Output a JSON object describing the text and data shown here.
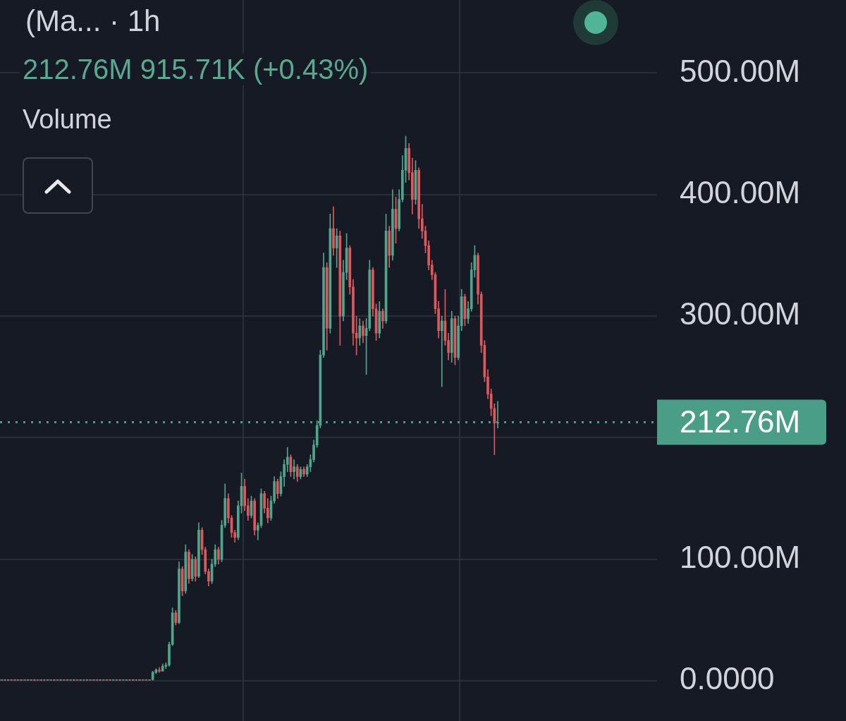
{
  "chart_data": {
    "type": "candlestick",
    "title": "(Ma... · 1h",
    "annotations": [
      "212.76M 915.71K (+0.43%)",
      "Volume"
    ],
    "categories": [
      null,
      null,
      null,
      null,
      null,
      null,
      null,
      null,
      null,
      null,
      null,
      null,
      null,
      null,
      null,
      null,
      null,
      null,
      null,
      null,
      null,
      null,
      null,
      null,
      null,
      null,
      null,
      null,
      null,
      null,
      null,
      null,
      null,
      null,
      null,
      null,
      null,
      null,
      null,
      null,
      null,
      null,
      null,
      null,
      null,
      null,
      null,
      null,
      null,
      null,
      null,
      null,
      null,
      null,
      null,
      null,
      null,
      null,
      null,
      null,
      null,
      null,
      null,
      null,
      null,
      null,
      null,
      null,
      null,
      null,
      null,
      null,
      null,
      null,
      null,
      null,
      null,
      null,
      null,
      null,
      null,
      null,
      null,
      null,
      null,
      null,
      null,
      null,
      null,
      null,
      null,
      null,
      null,
      null,
      null,
      null,
      null,
      null,
      null,
      null,
      null,
      null,
      null,
      null,
      null,
      null,
      null,
      null,
      null,
      null,
      null,
      null,
      null,
      null,
      null,
      null,
      null,
      null,
      null,
      null,
      null,
      null,
      null,
      null,
      null,
      null,
      null,
      null,
      null,
      null,
      null,
      null,
      null,
      null,
      null,
      null,
      null,
      null,
      null,
      null,
      null,
      null,
      null,
      null,
      null,
      null,
      null,
      null,
      null,
      null,
      null,
      null,
      null,
      null,
      null,
      null,
      null,
      null,
      null,
      null,
      null,
      null,
      null,
      null,
      null,
      null,
      null,
      null,
      null,
      null,
      null,
      null,
      null,
      null,
      null,
      null,
      null,
      null,
      null,
      null,
      null,
      null,
      null,
      null,
      null,
      null,
      null,
      null,
      null,
      null,
      null,
      null,
      null,
      null,
      null,
      null,
      null,
      null,
      null,
      null
    ],
    "ohlc": [
      [
        0,
        1,
        0,
        1
      ],
      [
        1,
        1,
        0,
        0
      ],
      [
        0,
        1,
        0,
        1
      ],
      [
        1,
        1,
        0,
        0
      ],
      [
        0,
        1,
        0,
        1
      ],
      [
        1,
        1,
        0,
        0
      ],
      [
        0,
        1,
        0,
        1
      ],
      [
        1,
        1,
        0,
        0
      ],
      [
        0,
        1,
        0,
        1
      ],
      [
        1,
        1,
        0,
        0
      ],
      [
        0,
        1,
        0,
        1
      ],
      [
        1,
        1,
        0,
        0
      ],
      [
        0,
        1,
        0,
        1
      ],
      [
        1,
        1,
        0,
        0
      ],
      [
        0,
        1,
        0,
        1
      ],
      [
        1,
        1,
        0,
        0
      ],
      [
        0,
        1,
        0,
        1
      ],
      [
        1,
        1,
        0,
        0
      ],
      [
        0,
        1,
        0,
        1
      ],
      [
        1,
        1,
        0,
        0
      ],
      [
        0,
        1,
        0,
        1
      ],
      [
        1,
        1,
        0,
        0
      ],
      [
        0,
        1,
        0,
        1
      ],
      [
        1,
        1,
        0,
        0
      ],
      [
        0,
        1,
        0,
        1
      ],
      [
        1,
        1,
        0,
        0
      ],
      [
        0,
        1,
        0,
        1
      ],
      [
        1,
        1,
        0,
        0
      ],
      [
        0,
        1,
        0,
        1
      ],
      [
        1,
        1,
        0,
        0
      ],
      [
        0,
        1,
        0,
        1
      ],
      [
        1,
        1,
        0,
        0
      ],
      [
        0,
        1,
        0,
        1
      ],
      [
        1,
        1,
        0,
        0
      ],
      [
        0,
        1,
        0,
        1
      ],
      [
        1,
        1,
        0,
        0
      ],
      [
        0,
        1,
        0,
        1
      ],
      [
        1,
        1,
        0,
        0
      ],
      [
        0,
        1,
        0,
        1
      ],
      [
        1,
        1,
        0,
        0
      ],
      [
        0,
        1,
        0,
        1
      ],
      [
        1,
        1,
        0,
        0
      ],
      [
        0,
        1,
        0,
        1
      ],
      [
        1,
        1,
        0,
        0
      ],
      [
        0,
        1,
        0,
        1
      ],
      [
        1,
        1,
        0,
        0
      ],
      [
        1,
        8,
        0,
        7
      ],
      [
        7,
        10,
        6,
        9
      ],
      [
        9,
        11,
        7,
        8
      ],
      [
        8,
        14,
        8,
        12
      ],
      [
        12,
        15,
        10,
        13
      ],
      [
        13,
        32,
        12,
        30
      ],
      [
        30,
        60,
        29,
        56
      ],
      [
        56,
        58,
        46,
        48
      ],
      [
        48,
        98,
        47,
        92
      ],
      [
        92,
        94,
        70,
        74
      ],
      [
        74,
        112,
        72,
        106
      ],
      [
        106,
        108,
        80,
        84
      ],
      [
        84,
        104,
        82,
        100
      ],
      [
        100,
        102,
        82,
        86
      ],
      [
        86,
        130,
        85,
        124
      ],
      [
        124,
        126,
        104,
        108
      ],
      [
        108,
        110,
        88,
        90
      ],
      [
        90,
        92,
        78,
        82
      ],
      [
        82,
        100,
        80,
        96
      ],
      [
        96,
        112,
        94,
        108
      ],
      [
        108,
        110,
        96,
        100
      ],
      [
        100,
        132,
        98,
        128
      ],
      [
        128,
        162,
        126,
        150
      ],
      [
        150,
        154,
        130,
        134
      ],
      [
        134,
        136,
        118,
        122
      ],
      [
        122,
        124,
        114,
        118
      ],
      [
        118,
        148,
        116,
        144
      ],
      [
        144,
        171,
        138,
        160
      ],
      [
        160,
        166,
        140,
        144
      ],
      [
        144,
        150,
        132,
        136
      ],
      [
        136,
        152,
        134,
        148
      ],
      [
        148,
        150,
        120,
        124
      ],
      [
        124,
        130,
        116,
        128
      ],
      [
        128,
        158,
        126,
        154
      ],
      [
        154,
        156,
        138,
        142
      ],
      [
        142,
        150,
        130,
        134
      ],
      [
        134,
        152,
        132,
        148
      ],
      [
        148,
        168,
        146,
        164
      ],
      [
        164,
        166,
        150,
        154
      ],
      [
        154,
        172,
        152,
        168
      ],
      [
        168,
        182,
        160,
        178
      ],
      [
        178,
        192,
        172,
        184
      ],
      [
        184,
        186,
        168,
        172
      ],
      [
        172,
        182,
        166,
        176
      ],
      [
        176,
        178,
        164,
        168
      ],
      [
        168,
        176,
        166,
        174
      ],
      [
        174,
        176,
        168,
        170
      ],
      [
        170,
        178,
        168,
        176
      ],
      [
        176,
        186,
        172,
        182
      ],
      [
        182,
        198,
        180,
        194
      ],
      [
        194,
        214,
        192,
        210
      ],
      [
        210,
        272,
        208,
        268
      ],
      [
        268,
        352,
        266,
        340
      ],
      [
        340,
        344,
        272,
        290
      ],
      [
        290,
        384,
        286,
        372
      ],
      [
        372,
        390,
        350,
        356
      ],
      [
        356,
        372,
        340,
        366
      ],
      [
        366,
        370,
        276,
        300
      ],
      [
        300,
        346,
        296,
        336
      ],
      [
        336,
        368,
        330,
        356
      ],
      [
        356,
        358,
        318,
        324
      ],
      [
        324,
        330,
        276,
        286
      ],
      [
        286,
        300,
        268,
        282
      ],
      [
        282,
        298,
        276,
        292
      ],
      [
        292,
        296,
        278,
        284
      ],
      [
        284,
        298,
        252,
        290
      ],
      [
        290,
        346,
        288,
        338
      ],
      [
        338,
        340,
        300,
        306
      ],
      [
        306,
        310,
        280,
        286
      ],
      [
        286,
        312,
        282,
        304
      ],
      [
        304,
        306,
        290,
        296
      ],
      [
        296,
        384,
        294,
        370
      ],
      [
        370,
        374,
        340,
        350
      ],
      [
        350,
        404,
        346,
        388
      ],
      [
        388,
        398,
        360,
        372
      ],
      [
        372,
        404,
        370,
        396
      ],
      [
        396,
        432,
        394,
        420
      ],
      [
        420,
        448,
        410,
        438
      ],
      [
        438,
        442,
        412,
        418
      ],
      [
        418,
        430,
        384,
        396
      ],
      [
        396,
        428,
        392,
        420
      ],
      [
        420,
        422,
        372,
        380
      ],
      [
        380,
        392,
        364,
        370
      ],
      [
        370,
        374,
        352,
        358
      ],
      [
        358,
        362,
        338,
        342
      ],
      [
        342,
        346,
        330,
        334
      ],
      [
        334,
        336,
        302,
        306
      ],
      [
        306,
        312,
        282,
        288
      ],
      [
        288,
        300,
        242,
        296
      ],
      [
        296,
        322,
        276,
        280
      ],
      [
        280,
        286,
        264,
        270
      ],
      [
        270,
        304,
        262,
        298
      ],
      [
        298,
        300,
        260,
        266
      ],
      [
        266,
        300,
        264,
        292
      ],
      [
        292,
        322,
        288,
        316
      ],
      [
        316,
        318,
        292,
        298
      ],
      [
        298,
        312,
        294,
        306
      ],
      [
        306,
        344,
        304,
        338
      ],
      [
        338,
        358,
        332,
        350
      ],
      [
        350,
        352,
        310,
        318
      ],
      [
        318,
        320,
        270,
        276
      ],
      [
        276,
        280,
        246,
        250
      ],
      [
        250,
        256,
        232,
        236
      ],
      [
        236,
        240,
        218,
        224
      ],
      [
        224,
        228,
        186,
        212
      ],
      [
        212,
        230,
        208,
        212.76
      ],
      null,
      null,
      null,
      null,
      null,
      null,
      null,
      null,
      null,
      null,
      null,
      null,
      null,
      null,
      null,
      null,
      null,
      null,
      null,
      null,
      null,
      null,
      null,
      null,
      null,
      null,
      null,
      null,
      null,
      null,
      null,
      null,
      null,
      null,
      null,
      null,
      null,
      null,
      null,
      null,
      null,
      null,
      null,
      null,
      null,
      null,
      null,
      null
    ],
    "colors": [
      "#4fa68d",
      "#e0585b",
      "#4fa68d",
      "#e0585b",
      "#4fa68d",
      "#e0585b",
      "#4fa68d",
      "#e0585b",
      "#4fa68d",
      "#e0585b",
      "#4fa68d",
      "#e0585b",
      "#4fa68d",
      "#e0585b",
      "#4fa68d",
      "#e0585b",
      "#4fa68d",
      "#e0585b",
      "#4fa68d",
      "#e0585b",
      "#4fa68d",
      "#e0585b",
      "#4fa68d",
      "#e0585b",
      "#4fa68d",
      "#e0585b",
      "#4fa68d",
      "#e0585b",
      "#4fa68d",
      "#e0585b",
      "#4fa68d",
      "#e0585b",
      "#4fa68d",
      "#e0585b",
      "#4fa68d",
      "#e0585b",
      "#4fa68d",
      "#e0585b",
      "#4fa68d",
      "#e0585b",
      "#4fa68d",
      "#e0585b",
      "#4fa68d",
      "#e0585b",
      "#4fa68d",
      "#e0585b",
      "#4fa68d",
      "#4fa68d",
      "#e0585b",
      "#4fa68d",
      "#4fa68d",
      "#4fa68d",
      "#4fa68d",
      "#e0585b",
      "#4fa68d",
      "#e0585b",
      "#4fa68d",
      "#e0585b",
      "#4fa68d",
      "#e0585b",
      "#4fa68d",
      "#e0585b",
      "#e0585b",
      "#e0585b",
      "#4fa68d",
      "#4fa68d",
      "#e0585b",
      "#4fa68d",
      "#4fa68d",
      "#e0585b",
      "#e0585b",
      "#e0585b",
      "#4fa68d",
      "#4fa68d",
      "#e0585b",
      "#e0585b",
      "#4fa68d",
      "#e0585b",
      "#4fa68d",
      "#4fa68d",
      "#e0585b",
      "#e0585b",
      "#4fa68d",
      "#4fa68d",
      "#e0585b",
      "#4fa68d",
      "#4fa68d",
      "#4fa68d",
      "#e0585b",
      "#4fa68d",
      "#e0585b",
      "#4fa68d",
      "#e0585b",
      "#4fa68d",
      "#4fa68d",
      "#4fa68d",
      "#4fa68d",
      "#4fa68d",
      "#4fa68d",
      "#e0585b",
      "#4fa68d",
      "#e0585b",
      "#4fa68d",
      "#e0585b",
      "#4fa68d",
      "#4fa68d",
      "#e0585b",
      "#e0585b",
      "#e0585b",
      "#4fa68d",
      "#e0585b",
      "#4fa68d",
      "#4fa68d",
      "#e0585b",
      "#e0585b",
      "#4fa68d",
      "#e0585b",
      "#4fa68d",
      "#e0585b",
      "#4fa68d",
      "#e0585b",
      "#4fa68d",
      "#4fa68d",
      "#4fa68d",
      "#e0585b",
      "#e0585b",
      "#4fa68d",
      "#e0585b",
      "#e0585b",
      "#e0585b",
      "#e0585b",
      "#e0585b",
      "#e0585b",
      "#e0585b",
      "#4fa68d",
      "#e0585b",
      "#e0585b",
      "#4fa68d",
      "#e0585b",
      "#4fa68d",
      "#4fa68d",
      "#e0585b",
      "#4fa68d",
      "#4fa68d",
      "#4fa68d",
      "#e0585b",
      "#e0585b",
      "#e0585b",
      "#e0585b",
      "#e0585b",
      "#e0585b",
      "#4fa68d",
      null,
      null,
      null,
      null,
      null,
      null,
      null,
      null,
      null,
      null,
      null,
      null,
      null,
      null,
      null,
      null,
      null,
      null,
      null,
      null,
      null,
      null,
      null,
      null,
      null,
      null,
      null,
      null,
      null,
      null,
      null,
      null,
      null,
      null,
      null,
      null,
      null,
      null,
      null,
      null,
      null,
      null,
      null,
      null,
      null,
      null,
      null,
      null
    ],
    "ylim": [
      -33,
      560
    ],
    "yticks": [
      {
        "value": 0,
        "label": "0.0000"
      },
      {
        "value": 100,
        "label": "100.00M"
      },
      {
        "value": 200,
        "label": null
      },
      {
        "value": 300,
        "label": "300.00M"
      },
      {
        "value": 400,
        "label": "400.00M"
      },
      {
        "value": 500,
        "label": "500.00M"
      }
    ],
    "ref_lines": [
      {
        "axis": "y",
        "value": 212.76,
        "label": "212.76M",
        "color": "#4a9e87",
        "line_style": "dotted"
      }
    ],
    "grid": true,
    "tick_labels": "y"
  }
}
